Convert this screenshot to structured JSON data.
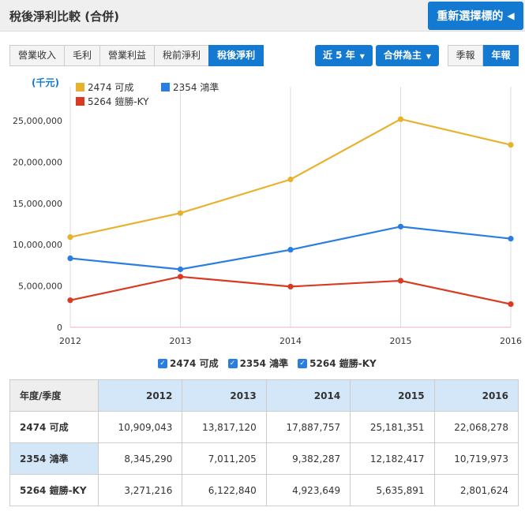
{
  "header": {
    "title": "稅後淨利比較 (合併)",
    "reselect_label": "重新選擇標的",
    "reselect_icon": "triangle-left-icon"
  },
  "tabs": [
    {
      "label": "營業收入",
      "active": false
    },
    {
      "label": "毛利",
      "active": false
    },
    {
      "label": "營業利益",
      "active": false
    },
    {
      "label": "稅前淨利",
      "active": false
    },
    {
      "label": "稅後淨利",
      "active": true
    }
  ],
  "dropdowns": [
    {
      "label": "近 5 年"
    },
    {
      "label": "合併為主"
    }
  ],
  "period_toggle": [
    {
      "label": "季報",
      "active": false
    },
    {
      "label": "年報",
      "active": true
    }
  ],
  "colors": {
    "accent": "#1479d0",
    "series": [
      "#e8b22f",
      "#2a7de1",
      "#d93b22"
    ]
  },
  "chart_data": {
    "type": "line",
    "unit_label": "(千元)",
    "x": [
      "2012",
      "2013",
      "2014",
      "2015",
      "2016"
    ],
    "ylim": [
      0,
      27000000
    ],
    "yticks": [
      0,
      5000000,
      10000000,
      15000000,
      20000000,
      25000000
    ],
    "ytick_labels": [
      "0",
      "5,000,000",
      "10,000,000",
      "15,000,000",
      "20,000,000",
      "25,000,000"
    ],
    "grid": "vertical",
    "legend": "top-left",
    "series": [
      {
        "name": "2474 可成",
        "values": [
          10909043,
          13817120,
          17887757,
          25181351,
          22068278
        ]
      },
      {
        "name": "2354 鴻準",
        "values": [
          8345290,
          7011205,
          9382287,
          12182417,
          10719973
        ]
      },
      {
        "name": "5264 鎧勝-KY",
        "values": [
          3271216,
          6122840,
          4923649,
          5635891,
          2801624
        ]
      }
    ]
  },
  "table": {
    "corner": "年度/季度",
    "columns": [
      "2012",
      "2013",
      "2014",
      "2015",
      "2016"
    ],
    "rows": [
      {
        "label": "2474 可成",
        "values": [
          "10,909,043",
          "13,817,120",
          "17,887,757",
          "25,181,351",
          "22,068,278"
        ]
      },
      {
        "label": "2354 鴻準",
        "values": [
          "8,345,290",
          "7,011,205",
          "9,382,287",
          "12,182,417",
          "10,719,973"
        ]
      },
      {
        "label": "5264 鎧勝-KY",
        "values": [
          "3,271,216",
          "6,122,840",
          "4,923,649",
          "5,635,891",
          "2,801,624"
        ]
      }
    ]
  }
}
